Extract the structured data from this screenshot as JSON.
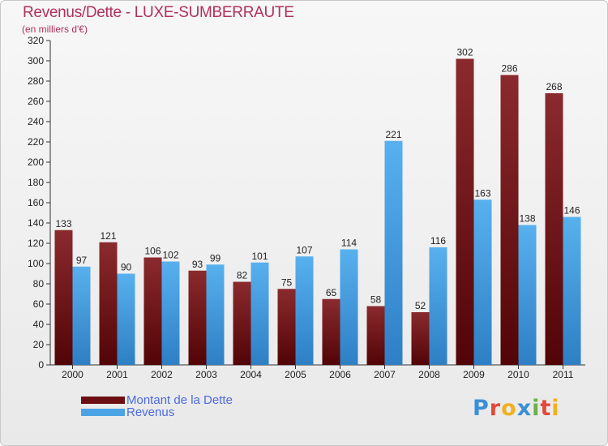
{
  "header": {
    "title": "Revenus/Dette - LUXE-SUMBERRAUTE",
    "subtitle": "(en milliers d'€)"
  },
  "colors": {
    "title": "#b0305a",
    "dette": "#7a1a1e",
    "revenus": "#4aa3e4",
    "legend_text": "#4a6adf"
  },
  "legend": {
    "items": [
      {
        "label": "Montant de la Dette",
        "color": "#6b0f12"
      },
      {
        "label": "Revenus",
        "color": "#4aa3e4"
      }
    ]
  },
  "logo": {
    "letters": [
      {
        "char": "P",
        "color": "#3a8fd6"
      },
      {
        "char": "r",
        "color": "#e04a3a"
      },
      {
        "char": "o",
        "color": "#f0b020"
      },
      {
        "char": "x",
        "color": "#3a8fd6"
      },
      {
        "char": "i",
        "color": "#6ab04a"
      },
      {
        "char": "t",
        "color": "#e04a3a"
      },
      {
        "char": "i",
        "color": "#f0b020"
      }
    ]
  },
  "chart_data": {
    "type": "bar",
    "categories": [
      "2000",
      "2001",
      "2002",
      "2003",
      "2004",
      "2005",
      "2006",
      "2007",
      "2008",
      "2009",
      "2010",
      "2011"
    ],
    "series": [
      {
        "name": "Montant de la Dette",
        "values": [
          133,
          121,
          106,
          93,
          82,
          75,
          65,
          58,
          52,
          302,
          286,
          268
        ]
      },
      {
        "name": "Revenus",
        "values": [
          97,
          90,
          102,
          99,
          101,
          107,
          114,
          221,
          116,
          163,
          138,
          146
        ]
      }
    ],
    "ylim": [
      0,
      320
    ],
    "yticks": [
      0,
      20,
      40,
      60,
      80,
      100,
      120,
      140,
      160,
      180,
      200,
      220,
      240,
      260,
      280,
      300,
      320
    ],
    "grid": false,
    "legend_position": "bottom-left",
    "data_labels": true
  }
}
